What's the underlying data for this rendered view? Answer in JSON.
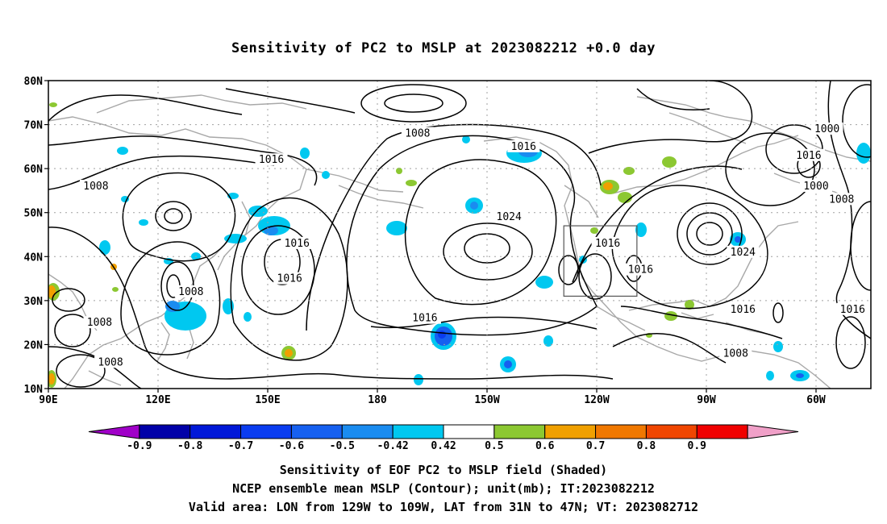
{
  "title": "Sensitivity of PC2 to MSLP at 2023082212 +0.0 day",
  "map": {
    "lat_labels": [
      "80N",
      "70N",
      "60N",
      "50N",
      "40N",
      "30N",
      "20N",
      "10N"
    ],
    "lon_labels": [
      "90E",
      "120E",
      "150E",
      "180",
      "150W",
      "120W",
      "90W",
      "60W"
    ],
    "extent": {
      "lon_min": 90,
      "lon_max": 315,
      "lat_min": 10,
      "lat_max": 80
    },
    "valid_box": {
      "lon_from": "129W",
      "lon_to": "109W",
      "lat_from": "31N",
      "lat_to": "47N"
    },
    "contour_labels": [
      {
        "text": "1008",
        "lon": 103,
        "lat": 56
      },
      {
        "text": "1016",
        "lon": 151,
        "lat": 62
      },
      {
        "text": "1008",
        "lon": 191,
        "lat": 68
      },
      {
        "text": "1016",
        "lon": 220,
        "lat": 65
      },
      {
        "text": "1016",
        "lon": 298,
        "lat": 63
      },
      {
        "text": "1000",
        "lon": 303,
        "lat": 69
      },
      {
        "text": "1000",
        "lon": 300,
        "lat": 56
      },
      {
        "text": "1008",
        "lon": 307,
        "lat": 53
      },
      {
        "text": "1024",
        "lon": 216,
        "lat": 49
      },
      {
        "text": "1016",
        "lon": 158,
        "lat": 43
      },
      {
        "text": "1016",
        "lon": 243,
        "lat": 43
      },
      {
        "text": "1016",
        "lon": 156,
        "lat": 35
      },
      {
        "text": "1016",
        "lon": 252,
        "lat": 37
      },
      {
        "text": "1024",
        "lon": 280,
        "lat": 41
      },
      {
        "text": "1008",
        "lon": 129,
        "lat": 32
      },
      {
        "text": "1008",
        "lon": 104,
        "lat": 25
      },
      {
        "text": "1016",
        "lon": 193,
        "lat": 26
      },
      {
        "text": "1016",
        "lon": 280,
        "lat": 28
      },
      {
        "text": "1016",
        "lon": 310,
        "lat": 28
      },
      {
        "text": "1008",
        "lon": 278,
        "lat": 18
      },
      {
        "text": "1008",
        "lon": 107,
        "lat": 16
      }
    ]
  },
  "colorbar": {
    "tick_labels": [
      "-0.9",
      "-0.8",
      "-0.7",
      "-0.6",
      "-0.5",
      "-0.42",
      "0.42",
      "0.5",
      "0.6",
      "0.7",
      "0.8",
      "0.9"
    ],
    "colors": [
      "#a000c8",
      "#0000a8",
      "#0018d8",
      "#0a3cf0",
      "#1660f0",
      "#1a8cf0",
      "#00c8f0",
      "#ffffff",
      "#8cc832",
      "#f0a000",
      "#f07800",
      "#f04600",
      "#f00000",
      "#f0a0c8"
    ]
  },
  "captions": [
    "Sensitivity of EOF PC2 to MSLP field (Shaded)",
    "NCEP ensemble mean MSLP (Contour); unit(mb); IT:2023082212",
    "Valid area: LON from 129W to 109W, LAT from 31N to 47N; VT: 2023082712"
  ]
}
